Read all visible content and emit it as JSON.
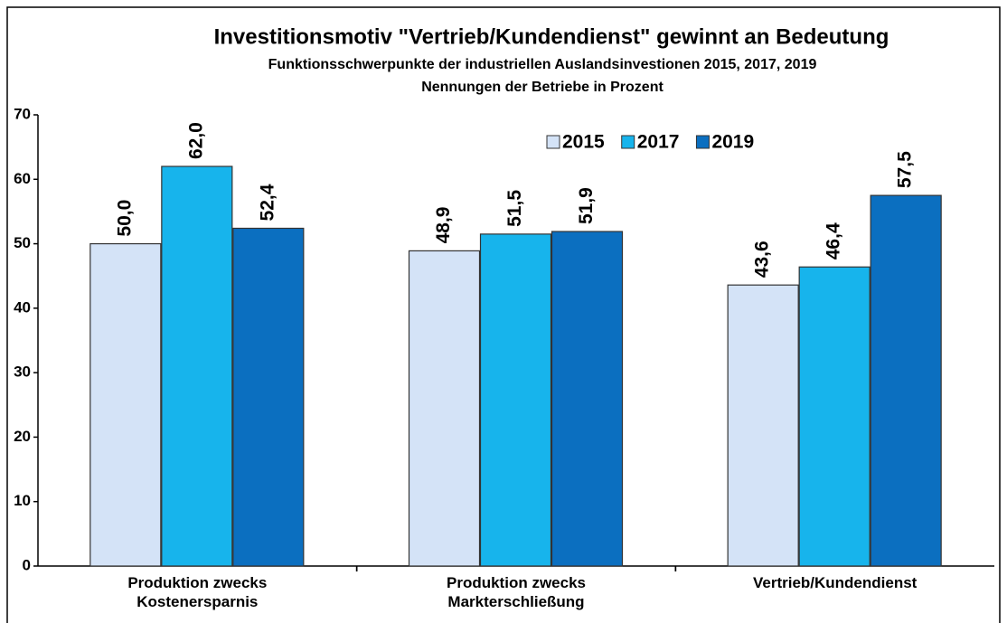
{
  "chart_data": {
    "type": "bar",
    "title": "Investitionsmotiv \"Vertrieb/Kundendienst\" gewinnt an Bedeutung",
    "subtitle": "Funktionsschwerpunkte der industriellen Auslandsinvestionen 2015, 2017, 2019",
    "subtitle2": "Nennungen der Betriebe in Prozent",
    "categories": [
      "Produktion zwecks\nKostenersparnis",
      "Produktion zwecks\nMarkterschließung",
      "Vertrieb/Kundendienst"
    ],
    "series": [
      {
        "name": "2015",
        "color": "#d4e3f7",
        "values": [
          50.0,
          48.9,
          43.6
        ],
        "value_labels": [
          "50,0",
          "48,9",
          "43,6"
        ]
      },
      {
        "name": "2017",
        "color": "#17b4ec",
        "values": [
          62.0,
          51.5,
          46.4
        ],
        "value_labels": [
          "62,0",
          "51,5",
          "46,4"
        ]
      },
      {
        "name": "2019",
        "color": "#0b6fc0",
        "values": [
          52.4,
          51.9,
          57.5
        ],
        "value_labels": [
          "52,4",
          "51,9",
          "57,5"
        ]
      }
    ],
    "ylim": [
      0,
      70
    ],
    "yticks": [
      0,
      10,
      20,
      30,
      40,
      50,
      60,
      70
    ],
    "grid": false,
    "legend": "top-right"
  }
}
